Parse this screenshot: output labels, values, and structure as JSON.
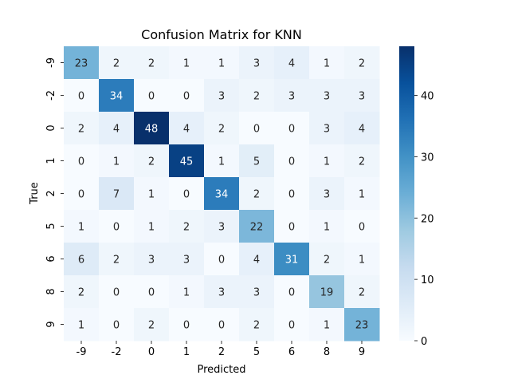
{
  "chart_data": {
    "type": "heatmap",
    "title": "Confusion Matrix for KNN",
    "xlabel": "Predicted",
    "ylabel": "True",
    "x_categories": [
      "-9",
      "-2",
      "0",
      "1",
      "2",
      "5",
      "6",
      "8",
      "9"
    ],
    "y_categories": [
      "-9",
      "-2",
      "0",
      "1",
      "2",
      "5",
      "6",
      "8",
      "9"
    ],
    "matrix": [
      [
        23,
        2,
        2,
        1,
        1,
        3,
        4,
        1,
        2
      ],
      [
        0,
        34,
        0,
        0,
        3,
        2,
        3,
        3,
        3
      ],
      [
        2,
        4,
        48,
        4,
        2,
        0,
        0,
        3,
        4
      ],
      [
        0,
        1,
        2,
        45,
        1,
        5,
        0,
        1,
        2
      ],
      [
        0,
        7,
        1,
        0,
        34,
        2,
        0,
        3,
        1
      ],
      [
        1,
        0,
        1,
        2,
        3,
        22,
        0,
        1,
        0
      ],
      [
        6,
        2,
        3,
        3,
        0,
        4,
        31,
        2,
        1
      ],
      [
        2,
        0,
        0,
        1,
        3,
        3,
        0,
        19,
        2
      ],
      [
        1,
        0,
        2,
        0,
        0,
        2,
        0,
        1,
        23
      ]
    ],
    "colormap": "Blues",
    "value_range": [
      0,
      48
    ],
    "colorbar_ticks": [
      0,
      10,
      20,
      30,
      40
    ],
    "colors": {
      "low": "#f7fbff",
      "high": "#08306b",
      "text_dark": "#262626",
      "text_light": "#ffffff"
    }
  }
}
